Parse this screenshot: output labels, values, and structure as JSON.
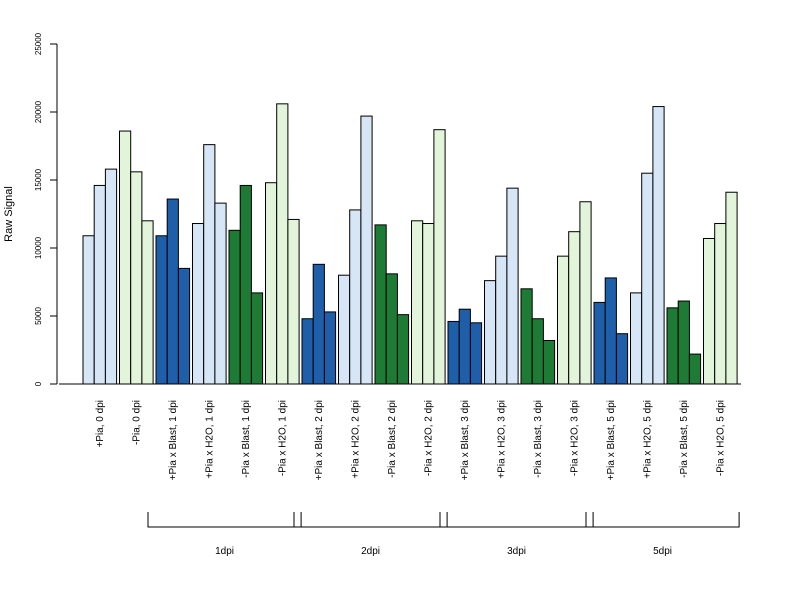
{
  "chart_data": {
    "type": "bar",
    "title": "",
    "xlabel": "",
    "ylabel": "Raw Signal",
    "ylim": [
      0,
      25000
    ],
    "yticks": [
      0,
      5000,
      10000,
      15000,
      20000,
      25000
    ],
    "grid": false,
    "legend": "none",
    "colors": {
      "pia_plus_blast": "#1f5ea8",
      "pia_plus_water": "#d6e6f6",
      "pia_minus_blast": "#1e7b35",
      "pia_minus_water": "#e2f5da"
    },
    "categories": [
      "+Pia, 0 dpi",
      "-Pia, 0 dpi",
      "+Pia x Blast, 1 dpi",
      "+Pia x H2O, 1 dpi",
      "-Pia x Blast, 1 dpi",
      "-Pia x H2O, 1 dpi",
      "+Pia x Blast, 2 dpi",
      "+Pia x H2O, 2 dpi",
      "-Pia x Blast, 2 dpi",
      "-Pia x H2O, 2 dpi",
      "+Pia x Blast, 3 dpi",
      "+Pia x H2O, 3 dpi",
      "-Pia x Blast, 3 dpi",
      "-Pia x H2O, 3 dpi",
      "+Pia x Blast, 5 dpi",
      "+Pia x H2O, 5 dpi",
      "-Pia x Blast, 5 dpi",
      "-Pia x H2O, 5 dpi"
    ],
    "category_color_keys": [
      "pia_plus_water",
      "pia_minus_water",
      "pia_plus_blast",
      "pia_plus_water",
      "pia_minus_blast",
      "pia_minus_water",
      "pia_plus_blast",
      "pia_plus_water",
      "pia_minus_blast",
      "pia_minus_water",
      "pia_plus_blast",
      "pia_plus_water",
      "pia_minus_blast",
      "pia_minus_water",
      "pia_plus_blast",
      "pia_plus_water",
      "pia_minus_blast",
      "pia_minus_water"
    ],
    "replicates": [
      [
        10900,
        14600,
        15800
      ],
      [
        18600,
        15600,
        12000
      ],
      [
        10900,
        13600,
        8500
      ],
      [
        11800,
        17600,
        13300
      ],
      [
        11300,
        14600,
        6700
      ],
      [
        14800,
        20600,
        12100
      ],
      [
        4800,
        8800,
        5300
      ],
      [
        8000,
        12800,
        19700
      ],
      [
        11700,
        8100,
        5100
      ],
      [
        12000,
        11800,
        18700
      ],
      [
        4600,
        5500,
        4500
      ],
      [
        7600,
        9400,
        14400
      ],
      [
        7000,
        4800,
        3200
      ],
      [
        9400,
        11200,
        13400
      ],
      [
        6000,
        7800,
        3700
      ],
      [
        6700,
        15500,
        20400
      ],
      [
        5600,
        6100,
        2200
      ],
      [
        10700,
        11800,
        14100
      ]
    ],
    "groups": [
      {
        "label": "1dpi",
        "category_range": [
          2,
          5
        ]
      },
      {
        "label": "2dpi",
        "category_range": [
          6,
          9
        ]
      },
      {
        "label": "3dpi",
        "category_range": [
          10,
          13
        ]
      },
      {
        "label": "5dpi",
        "category_range": [
          14,
          17
        ]
      }
    ]
  }
}
